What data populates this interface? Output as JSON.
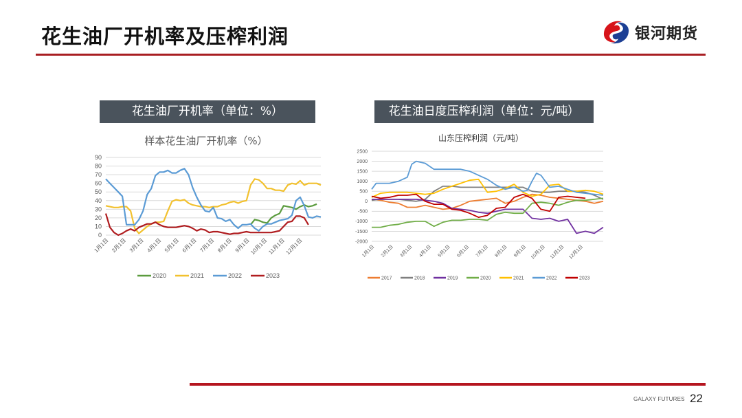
{
  "header": {
    "title": "花生油厂开机率及压榨利润",
    "logo_text": "银河期货"
  },
  "footer": {
    "brand": "GALAXY FUTURES",
    "page_number": "22"
  },
  "colors": {
    "accent_red": "#a81e22",
    "panel_bg": "#4a535c"
  },
  "panels": [
    {
      "title": "花生油厂开机率（单位：%）"
    },
    {
      "title": "花生油日度压榨利润（单位：元/吨）"
    }
  ],
  "chart_data": [
    {
      "type": "line",
      "title": "样本花生油厂开机率（%）",
      "xlabel": "",
      "ylabel": "",
      "ylim": [
        0,
        90
      ],
      "yticks": [
        0,
        10,
        20,
        30,
        40,
        50,
        60,
        70,
        80,
        90
      ],
      "grid": true,
      "legend_position": "bottom",
      "categories": [
        "1月1日",
        "2月1日",
        "3月1日",
        "4月1日",
        "5月1日",
        "6月1日",
        "7月1日",
        "8月1日",
        "9月1日",
        "10月1日",
        "11月1日",
        "12月1日"
      ],
      "x_unit": "week (0 = Jan 1, 52 = Dec 31)",
      "series": [
        {
          "name": "2020",
          "color": "#5b9b3e",
          "x": [
            35,
            36,
            37,
            38,
            39,
            40,
            41,
            42,
            43,
            44,
            45,
            46,
            47,
            48,
            49,
            50,
            51
          ],
          "values": [
            12,
            18,
            17,
            15,
            14,
            20,
            23,
            25,
            34,
            33,
            32,
            30,
            33,
            35,
            33,
            34,
            36
          ]
        },
        {
          "name": "2021",
          "color": "#f2c12e",
          "x": [
            0,
            1,
            2,
            3,
            4,
            5,
            6,
            7,
            8,
            9,
            10,
            11,
            12,
            13,
            14,
            15,
            16,
            17,
            18,
            19,
            20,
            21,
            22,
            23,
            24,
            25,
            26,
            27,
            28,
            29,
            30,
            31,
            32,
            33,
            34,
            35,
            36,
            37,
            38,
            39,
            40,
            41,
            42,
            43,
            44,
            45,
            46,
            47,
            48,
            49,
            50,
            51,
            52
          ],
          "values": [
            34,
            33,
            32,
            32,
            33,
            33,
            28,
            8,
            2,
            6,
            10,
            13,
            15,
            15,
            16,
            28,
            39,
            41,
            40,
            41,
            37,
            35,
            34,
            33,
            33,
            32,
            33,
            33,
            35,
            36,
            38,
            39,
            37,
            39,
            40,
            58,
            65,
            64,
            60,
            54,
            54,
            52,
            52,
            51,
            58,
            60,
            59,
            63,
            58,
            60,
            60,
            60,
            58
          ]
        },
        {
          "name": "2022",
          "color": "#5b9bd5",
          "x": [
            0,
            1,
            2,
            3,
            4,
            5,
            6,
            7,
            8,
            9,
            10,
            11,
            12,
            13,
            14,
            15,
            16,
            17,
            18,
            19,
            20,
            21,
            22,
            23,
            24,
            25,
            26,
            27,
            28,
            29,
            30,
            31,
            32,
            33,
            34,
            35,
            36,
            37,
            38,
            39,
            40,
            41,
            42,
            43,
            44,
            45,
            46,
            47,
            48,
            49,
            50,
            51,
            52
          ],
          "values": [
            65,
            60,
            55,
            50,
            45,
            12,
            12,
            12,
            18,
            28,
            47,
            54,
            69,
            73,
            73,
            75,
            72,
            72,
            75,
            77,
            70,
            55,
            44,
            35,
            28,
            27,
            32,
            20,
            19,
            16,
            18,
            12,
            8,
            12,
            12,
            13,
            8,
            5,
            10,
            13,
            13,
            15,
            17,
            18,
            19,
            23,
            40,
            44,
            34,
            21,
            20,
            22,
            21
          ]
        },
        {
          "name": "2023",
          "color": "#b01c1f",
          "x": [
            0,
            1,
            2,
            3,
            4,
            5,
            6,
            7,
            8,
            9,
            10,
            11,
            12,
            13,
            14,
            15,
            16,
            17,
            18,
            19,
            20,
            21,
            22,
            23,
            24,
            25,
            26,
            27,
            28,
            29,
            30,
            31,
            32,
            33,
            34,
            35,
            36,
            37,
            38,
            39,
            40,
            41,
            42,
            43,
            44,
            45,
            46,
            47,
            48,
            49
          ],
          "values": [
            25,
            9,
            3,
            0,
            2,
            5,
            7,
            5,
            9,
            11,
            13,
            13,
            15,
            12,
            10,
            9,
            9,
            9,
            10,
            11,
            10,
            8,
            5,
            7,
            6,
            3,
            4,
            4,
            3,
            2,
            1,
            2,
            2,
            3,
            4,
            3,
            3,
            3,
            3,
            3,
            3,
            4,
            5,
            10,
            15,
            16,
            22,
            22,
            20,
            12
          ]
        }
      ]
    },
    {
      "type": "line",
      "title": "山东压榨利润（元/吨）",
      "xlabel": "",
      "ylabel": "",
      "ylim": [
        -2000,
        2500
      ],
      "yticks": [
        -2000,
        -1500,
        -1000,
        -500,
        0,
        500,
        1000,
        1500,
        2000,
        2500
      ],
      "grid": true,
      "legend_position": "bottom",
      "categories": [
        "1月1日",
        "2月1日",
        "3月1日",
        "4月1日",
        "5月1日",
        "6月1日",
        "7月1日",
        "8月1日",
        "9月1日",
        "10月1日",
        "11月1日",
        "12月1日"
      ],
      "x_unit": "week (0 = Jan 1, 52 = Dec 31)",
      "series": [
        {
          "name": "2017",
          "color": "#ed7d31",
          "x": [
            0,
            2,
            4,
            6,
            8,
            10,
            12,
            14,
            16,
            18,
            20,
            22,
            24,
            26,
            28,
            30,
            32,
            34,
            36,
            38,
            40,
            42,
            44,
            46,
            48,
            50,
            52
          ],
          "values": [
            100,
            50,
            -50,
            -100,
            -300,
            -300,
            -200,
            -300,
            -400,
            -350,
            -200,
            0,
            50,
            100,
            150,
            -100,
            0,
            200,
            350,
            300,
            200,
            150,
            100,
            50,
            0,
            -100,
            0
          ]
        },
        {
          "name": "2018",
          "color": "#7f7f7f",
          "x": [
            0,
            2,
            4,
            6,
            8,
            10,
            12,
            14,
            16,
            18,
            20,
            22,
            24,
            26,
            28,
            30,
            32,
            34,
            36,
            38,
            40,
            42,
            44,
            46,
            48,
            50,
            52
          ],
          "values": [
            50,
            100,
            100,
            100,
            50,
            0,
            100,
            500,
            750,
            750,
            700,
            700,
            700,
            700,
            700,
            700,
            700,
            700,
            500,
            450,
            450,
            500,
            500,
            500,
            450,
            300,
            100
          ]
        },
        {
          "name": "2019",
          "color": "#7030a0",
          "x": [
            0,
            2,
            4,
            6,
            8,
            10,
            12,
            14,
            16,
            18,
            20,
            22,
            24,
            26,
            28,
            30,
            32,
            34,
            36,
            38,
            40,
            42,
            44,
            46,
            48,
            50,
            52
          ],
          "values": [
            100,
            100,
            100,
            100,
            100,
            100,
            50,
            0,
            -100,
            -350,
            -400,
            -450,
            -550,
            -600,
            -500,
            -400,
            -400,
            -400,
            -850,
            -900,
            -850,
            -1000,
            -900,
            -1600,
            -1500,
            -1600,
            -1300
          ]
        },
        {
          "name": "2020",
          "color": "#70ad47",
          "x": [
            0,
            2,
            4,
            6,
            8,
            10,
            12,
            14,
            16,
            18,
            20,
            22,
            24,
            26,
            28,
            30,
            32,
            34,
            36,
            38,
            40,
            42,
            44,
            46,
            48,
            50,
            52
          ],
          "values": [
            -1300,
            -1300,
            -1200,
            -1150,
            -1050,
            -1000,
            -1000,
            -1250,
            -1050,
            -950,
            -950,
            -900,
            -900,
            -950,
            -650,
            -550,
            -600,
            -600,
            -100,
            -50,
            -100,
            -200,
            -50,
            50,
            50,
            100,
            150
          ]
        },
        {
          "name": "2021",
          "color": "#ffc000",
          "x": [
            0,
            2,
            4,
            6,
            8,
            10,
            12,
            14,
            16,
            18,
            20,
            22,
            24,
            26,
            28,
            30,
            32,
            34,
            36,
            38,
            40,
            42,
            44,
            46,
            48,
            50,
            52
          ],
          "values": [
            200,
            400,
            450,
            450,
            450,
            400,
            350,
            400,
            600,
            750,
            900,
            1050,
            1100,
            450,
            500,
            650,
            850,
            450,
            250,
            350,
            800,
            850,
            500,
            500,
            550,
            500,
            350
          ]
        },
        {
          "name": "2022",
          "color": "#5b9bd5",
          "x": [
            0,
            1,
            2,
            4,
            6,
            8,
            9,
            10,
            12,
            14,
            16,
            18,
            20,
            22,
            24,
            26,
            28,
            30,
            32,
            34,
            35,
            36,
            37,
            38,
            40,
            42,
            44,
            46,
            48,
            50,
            52
          ],
          "values": [
            600,
            900,
            900,
            900,
            1000,
            1200,
            1850,
            2000,
            1900,
            1600,
            1600,
            1600,
            1600,
            1500,
            1300,
            1100,
            800,
            600,
            700,
            500,
            550,
            1000,
            1400,
            1300,
            700,
            750,
            600,
            450,
            400,
            350,
            300
          ]
        },
        {
          "name": "2023",
          "color": "#c00000",
          "x": [
            0,
            2,
            4,
            6,
            8,
            10,
            12,
            14,
            16,
            18,
            20,
            22,
            24,
            26,
            28,
            30,
            32,
            34,
            36,
            38,
            40,
            42,
            44,
            46,
            48
          ],
          "values": [
            250,
            150,
            200,
            300,
            300,
            350,
            0,
            -150,
            -150,
            -400,
            -450,
            -600,
            -800,
            -700,
            -350,
            -300,
            200,
            350,
            150,
            -400,
            -500,
            200,
            250,
            200,
            150
          ]
        }
      ]
    }
  ]
}
